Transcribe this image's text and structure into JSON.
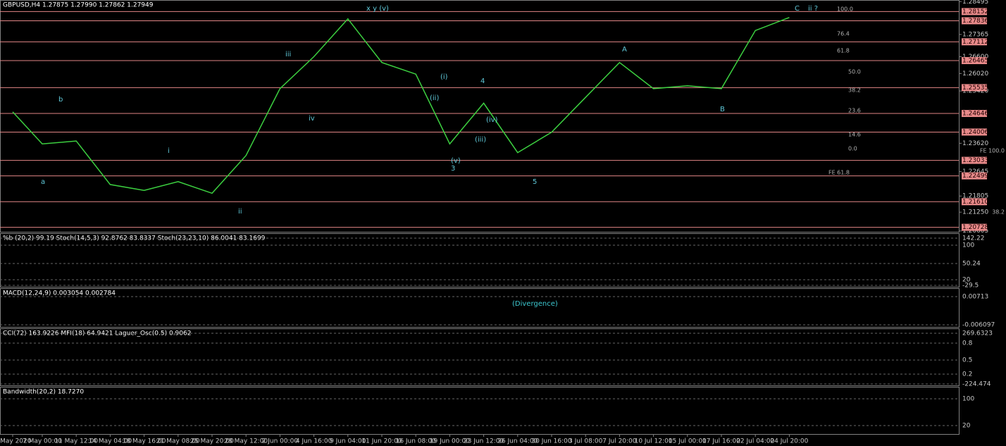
{
  "chart_data": {
    "type": "line",
    "title": "GBPUSD,H4  1.27875 1.27990 1.27862 1.27949",
    "x": [
      "4 May 2020",
      "7 May 00:00",
      "11 May 12:00",
      "14 May 04:00",
      "18 May 16:00",
      "21 May 08:00",
      "25 May 20:00",
      "28 May 12:00",
      "2 Jun 00:00",
      "4 Jun 16:00",
      "9 Jun 04:00",
      "11 Jun 20:00",
      "16 Jun 08:00",
      "19 Jun 00:00",
      "23 Jun 12:00",
      "26 Jun 04:00",
      "30 Jun 16:00",
      "3 Jul 08:00",
      "7 Jul 20:00",
      "10 Jul 12:00",
      "15 Jul 00:00",
      "17 Jul 16:00",
      "22 Jul 04:00",
      "24 Jul 20:00"
    ],
    "values": [
      1.247,
      1.236,
      1.237,
      1.222,
      1.22,
      1.223,
      1.219,
      1.232,
      1.255,
      1.266,
      1.279,
      1.264,
      1.26,
      1.236,
      1.25,
      1.233,
      1.24,
      1.252,
      1.264,
      1.255,
      1.256,
      1.255,
      1.275,
      1.2795
    ],
    "color": "#3cd040",
    "ylim": [
      1.2055,
      1.2855
    ],
    "yticks": [
      1.28495,
      1.27365,
      {
        "value": 1.266,
        "label": "1.26600"
      },
      {
        "value": 1.2602,
        "label": "1.26020"
      },
      {
        "value": 1.2542,
        "label": "1.25420"
      },
      {
        "value": 1.2362,
        "label": "1.23620"
      },
      1.22645,
      1.21805,
      {
        "value": 1.2125,
        "label": "1.21250"
      },
      1.20605
    ],
    "levels": [
      1.28152,
      1.27836,
      1.27112,
      1.26465,
      1.25535,
      1.24646,
      1.24006,
      1.23033,
      1.22499,
      {
        "value": 1.2161,
        "label": "1.21610"
      },
      1.20728
    ],
    "annotations": [
      "a",
      "b",
      "i",
      "ii",
      "iii",
      "iv",
      "x y (v)",
      "(i)",
      "(ii)",
      "(iii)",
      "(iv)",
      "(v)",
      "3",
      "4",
      "5",
      "A",
      "B",
      "C",
      "ii ?",
      "100.0",
      "76.4",
      "61.8",
      "50.0",
      "38.2",
      "23.6",
      "14.6",
      "0.0",
      "FE 61.8",
      "FE 100.0",
      "38.2"
    ]
  },
  "stoch_panel": {
    "title": "%b (20,2) 99.19  Stoch(14,5,3) 92.8762 83.8337  Stoch(23,23,10) 86.0041 83.1699",
    "axis": [
      "142.22",
      "100",
      "50.24",
      "20",
      "-29.5"
    ]
  },
  "macd_panel": {
    "title": "MACD(12,24,9) 0.003054 0.002784",
    "note": "(Divergence)",
    "axis": [
      "0.00713",
      "-0.006097"
    ]
  },
  "cci_panel": {
    "title": "CCI(72) 163.9226  MFI(18) 64.9421  Laguer_Osc(0.5) 0.9062",
    "axis": [
      "269.6323",
      "0.8",
      "0.5",
      "0.2",
      "-224.474"
    ]
  },
  "bandwidth_panel": {
    "title": "Bandwidth(20,2) 18.7270",
    "axis": [
      "100",
      "20"
    ]
  }
}
